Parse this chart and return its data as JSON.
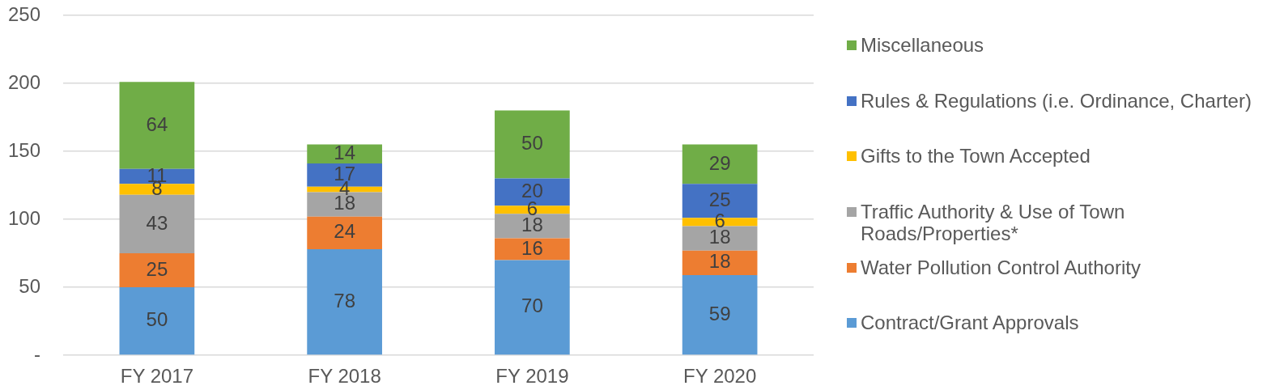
{
  "chart_data": {
    "type": "bar",
    "stacked": true,
    "categories": [
      "FY 2017",
      "FY 2018",
      "FY 2019",
      "FY 2020"
    ],
    "series": [
      {
        "name": "Contract/Grant Approvals",
        "color": "#5b9bd5",
        "values": [
          50,
          78,
          70,
          59
        ]
      },
      {
        "name": "Water Pollution Control Authority",
        "color": "#ed7d31",
        "values": [
          25,
          24,
          16,
          18
        ]
      },
      {
        "name": "Traffic Authority & Use of Town Roads/Properties*",
        "color": "#a5a5a5",
        "values": [
          43,
          18,
          18,
          18
        ]
      },
      {
        "name": "Gifts to the Town Accepted",
        "color": "#ffc000",
        "values": [
          8,
          4,
          6,
          6
        ]
      },
      {
        "name": "Rules & Regulations (i.e. Ordinance, Charter)",
        "color": "#4472c4",
        "values": [
          11,
          17,
          20,
          25
        ]
      },
      {
        "name": "Miscellaneous",
        "color": "#70ad47",
        "values": [
          64,
          14,
          50,
          29
        ]
      }
    ],
    "ylim": [
      0,
      250
    ],
    "yticks": [
      {
        "value": 0,
        "label": "-"
      },
      50,
      100,
      150,
      200,
      250
    ],
    "grid": "y",
    "legend": "right",
    "data_labels": true
  }
}
